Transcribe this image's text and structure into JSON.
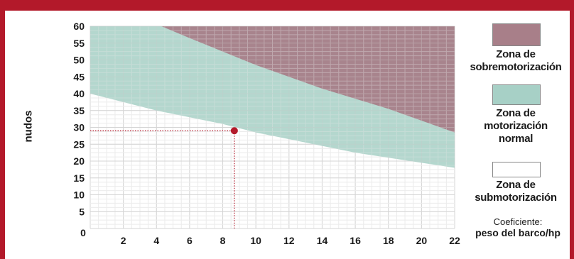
{
  "chart_data": {
    "type": "area",
    "ylabel": "nudos",
    "xlabel_line1": "Coeficiente:",
    "xlabel_line2": "peso del barco/hp",
    "origin_label": "0",
    "xlim": [
      0,
      22
    ],
    "ylim": [
      0,
      60
    ],
    "x_ticks": [
      2,
      4,
      6,
      8,
      10,
      12,
      14,
      16,
      18,
      20,
      22
    ],
    "y_ticks": [
      5,
      10,
      15,
      20,
      25,
      30,
      35,
      40,
      45,
      50,
      55,
      60
    ],
    "grid": true,
    "zones": [
      {
        "name": "sobremotorizacion",
        "color": "#a87f89",
        "upper": 60,
        "lower_boundary": {
          "x": [
            4.3,
            6,
            8,
            10,
            12,
            14,
            16,
            18,
            20,
            22
          ],
          "y": [
            60,
            56.5,
            52.5,
            48.5,
            45,
            41.5,
            38.5,
            35.5,
            32,
            28.5
          ]
        }
      },
      {
        "name": "motorizacion normal",
        "color": "#a7d0c6",
        "upper_boundary": "sobremotorizacion.lower_boundary",
        "lower_boundary": {
          "x": [
            0,
            2,
            4,
            6,
            8,
            10,
            12,
            14,
            16,
            18,
            20,
            22
          ],
          "y": [
            40,
            37.5,
            35,
            33,
            31,
            28.5,
            26.5,
            24.5,
            22.5,
            21,
            19.5,
            18
          ]
        }
      },
      {
        "name": "submotorizacion",
        "color": "#ffffff"
      }
    ],
    "highlight_point": {
      "x": 8.7,
      "y": 29,
      "color": "#b3192a"
    }
  },
  "legend": [
    {
      "label_lines": [
        "Zona de",
        "sobremotorización"
      ],
      "color": "#a87f89"
    },
    {
      "label_lines": [
        "Zona de",
        "motorización",
        "normal"
      ],
      "color": "#a7d0c6"
    },
    {
      "label_lines": [
        "Zona de",
        "submotorización"
      ],
      "color": "#ffffff"
    }
  ]
}
